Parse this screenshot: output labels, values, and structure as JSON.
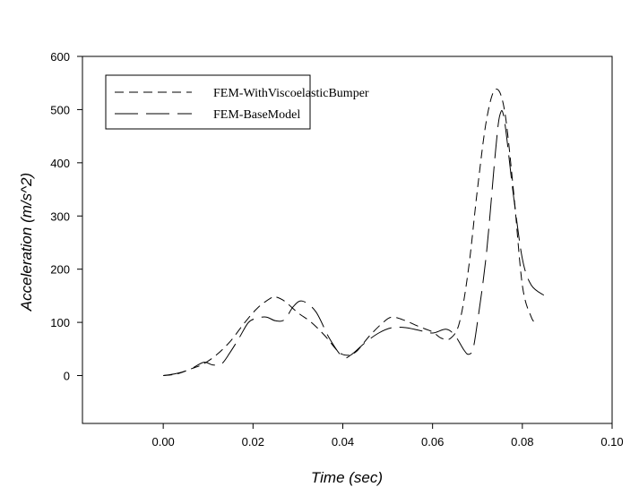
{
  "chart_data": {
    "type": "line",
    "title": "",
    "xlabel": "Time (sec)",
    "ylabel": "Acceleration (m/s^2)",
    "xlim": [
      -0.018,
      0.1
    ],
    "ylim": [
      -90,
      600
    ],
    "xticks": [
      0.0,
      0.02,
      0.04,
      0.06,
      0.08,
      0.1
    ],
    "xtick_labels": [
      "0.00",
      "0.02",
      "0.04",
      "0.06",
      "0.08",
      "0.10"
    ],
    "yticks": [
      0,
      100,
      200,
      300,
      400,
      500,
      600
    ],
    "ytick_labels": [
      "0",
      "100",
      "200",
      "300",
      "400",
      "500",
      "600"
    ],
    "grid": false,
    "legend_position": "top-left",
    "series": [
      {
        "name": "FEM-WithViscoelasticBumper",
        "dash": "short",
        "color": "#000000",
        "x": [
          0.0,
          0.003,
          0.006,
          0.009,
          0.012,
          0.015,
          0.018,
          0.021,
          0.024,
          0.025,
          0.027,
          0.03,
          0.033,
          0.036,
          0.039,
          0.041,
          0.043,
          0.046,
          0.049,
          0.051,
          0.054,
          0.057,
          0.06,
          0.062,
          0.064,
          0.066,
          0.068,
          0.07,
          0.072,
          0.074,
          0.076,
          0.078,
          0.08,
          0.082,
          0.083
        ],
        "y": [
          0,
          3,
          12,
          22,
          40,
          65,
          98,
          127,
          146,
          148,
          140,
          118,
          100,
          75,
          45,
          38,
          45,
          75,
          100,
          110,
          103,
          92,
          82,
          70,
          70,
          100,
          200,
          350,
          480,
          538,
          500,
          350,
          170,
          110,
          100
        ]
      },
      {
        "name": "FEM-BaseModel",
        "dash": "long",
        "color": "#000000",
        "x": [
          0.0,
          0.003,
          0.006,
          0.009,
          0.011,
          0.013,
          0.015,
          0.017,
          0.019,
          0.021,
          0.023,
          0.025,
          0.027,
          0.029,
          0.031,
          0.034,
          0.037,
          0.04,
          0.042,
          0.045,
          0.048,
          0.051,
          0.054,
          0.057,
          0.06,
          0.063,
          0.065,
          0.067,
          0.068,
          0.069,
          0.07,
          0.072,
          0.074,
          0.075,
          0.076,
          0.078,
          0.08,
          0.082,
          0.085
        ],
        "y": [
          0,
          4,
          12,
          25,
          20,
          22,
          45,
          72,
          100,
          108,
          110,
          103,
          105,
          130,
          140,
          120,
          70,
          35,
          40,
          62,
          80,
          90,
          90,
          85,
          80,
          87,
          75,
          48,
          40,
          50,
          100,
          230,
          420,
          490,
          480,
          340,
          220,
          170,
          150
        ]
      }
    ]
  }
}
